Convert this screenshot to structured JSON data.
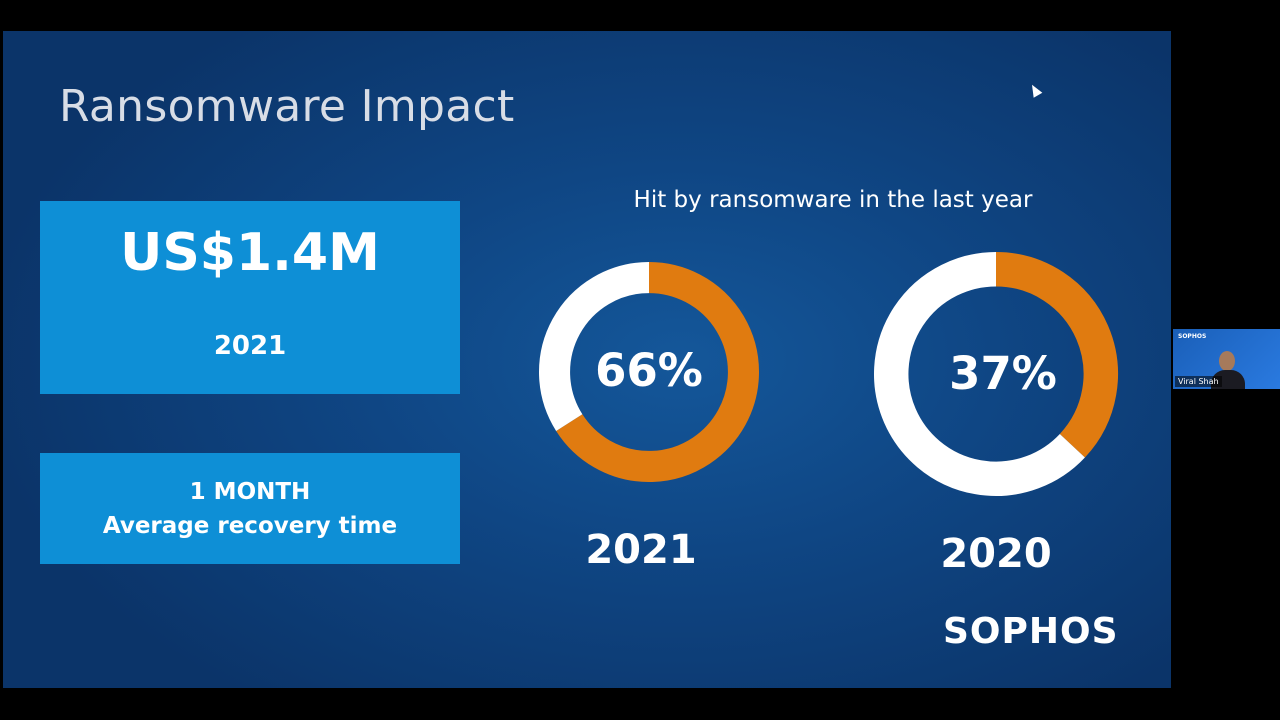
{
  "slide": {
    "title": "Ransomware Impact",
    "cost_box": {
      "value": "US$1.4M",
      "year": "2021"
    },
    "recovery_box": {
      "line1": "1 MONTH",
      "line2": "Average recovery time"
    },
    "chart_heading": "Hit by ransomware in the last year",
    "logo": "SOPHOS"
  },
  "chart_data": [
    {
      "type": "pie",
      "title": "",
      "value_label": "66%",
      "year": "2021",
      "values": [
        66,
        34
      ],
      "colors": [
        "#e07b10",
        "#ffffff"
      ]
    },
    {
      "type": "pie",
      "title": "",
      "value_label": "37%",
      "year": "2020",
      "values": [
        37,
        63
      ],
      "colors": [
        "#e07b10",
        "#ffffff"
      ]
    }
  ],
  "colors": {
    "accent_orange": "#e07b10",
    "box_blue": "#0e8fd6",
    "slide_bg": "#0f4684"
  },
  "toolbar": {
    "buttons": [
      {
        "icon": "prev-icon",
        "glyph": "◀"
      },
      {
        "icon": "next-icon",
        "glyph": "▶"
      },
      {
        "icon": "pen-icon",
        "glyph": "✎"
      },
      {
        "icon": "slides-icon",
        "glyph": "▣"
      },
      {
        "icon": "zoom-icon",
        "glyph": "⌕"
      },
      {
        "icon": "subtitles-icon",
        "glyph": "▭"
      },
      {
        "icon": "screen-icon",
        "glyph": "⊠"
      },
      {
        "icon": "more-icon",
        "glyph": "⋯"
      }
    ]
  },
  "participant": {
    "name": "Viral Shah",
    "brand": "SOPHOS"
  }
}
